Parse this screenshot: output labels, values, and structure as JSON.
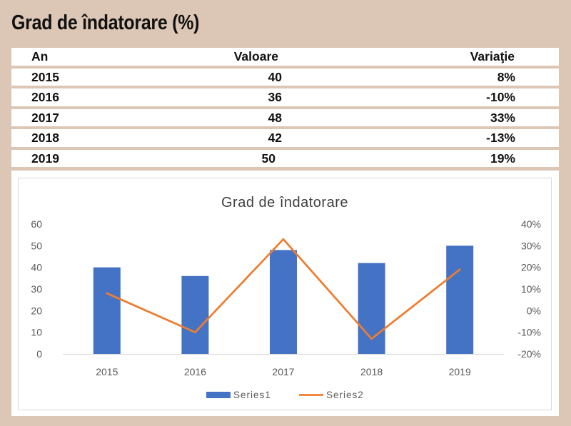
{
  "page": {
    "title": "Grad de îndatorare (%)"
  },
  "table": {
    "headers": [
      "An",
      "Valoare",
      "Variaţie"
    ],
    "rows": [
      [
        "2015",
        "40",
        "8%"
      ],
      [
        "2016",
        "36",
        "-10%"
      ],
      [
        "2017",
        "48",
        "33%"
      ],
      [
        "2018",
        "42",
        "-13%"
      ],
      [
        "2019",
        "50",
        "19%"
      ]
    ]
  },
  "chart_data": {
    "type": "bar",
    "title": "Grad de îndatorare",
    "categories": [
      "2015",
      "2016",
      "2017",
      "2018",
      "2019"
    ],
    "series": [
      {
        "name": "Series1",
        "type": "bar",
        "axis": "left",
        "values": [
          40,
          36,
          48,
          42,
          50
        ],
        "color": "#4472c4"
      },
      {
        "name": "Series2",
        "type": "line",
        "axis": "right",
        "values": [
          8,
          -10,
          33,
          -13,
          19
        ],
        "color": "#ed7d31"
      }
    ],
    "y_left": {
      "min": 0,
      "max": 60,
      "step": 10,
      "tick_labels": [
        "0",
        "10",
        "20",
        "30",
        "40",
        "50",
        "60"
      ]
    },
    "y_right": {
      "min": -20,
      "max": 40,
      "step": 10,
      "tick_labels": [
        "-20%",
        "-10%",
        "0%",
        "10%",
        "20%",
        "30%",
        "40%"
      ]
    },
    "grid": false,
    "legend": "bottom"
  }
}
